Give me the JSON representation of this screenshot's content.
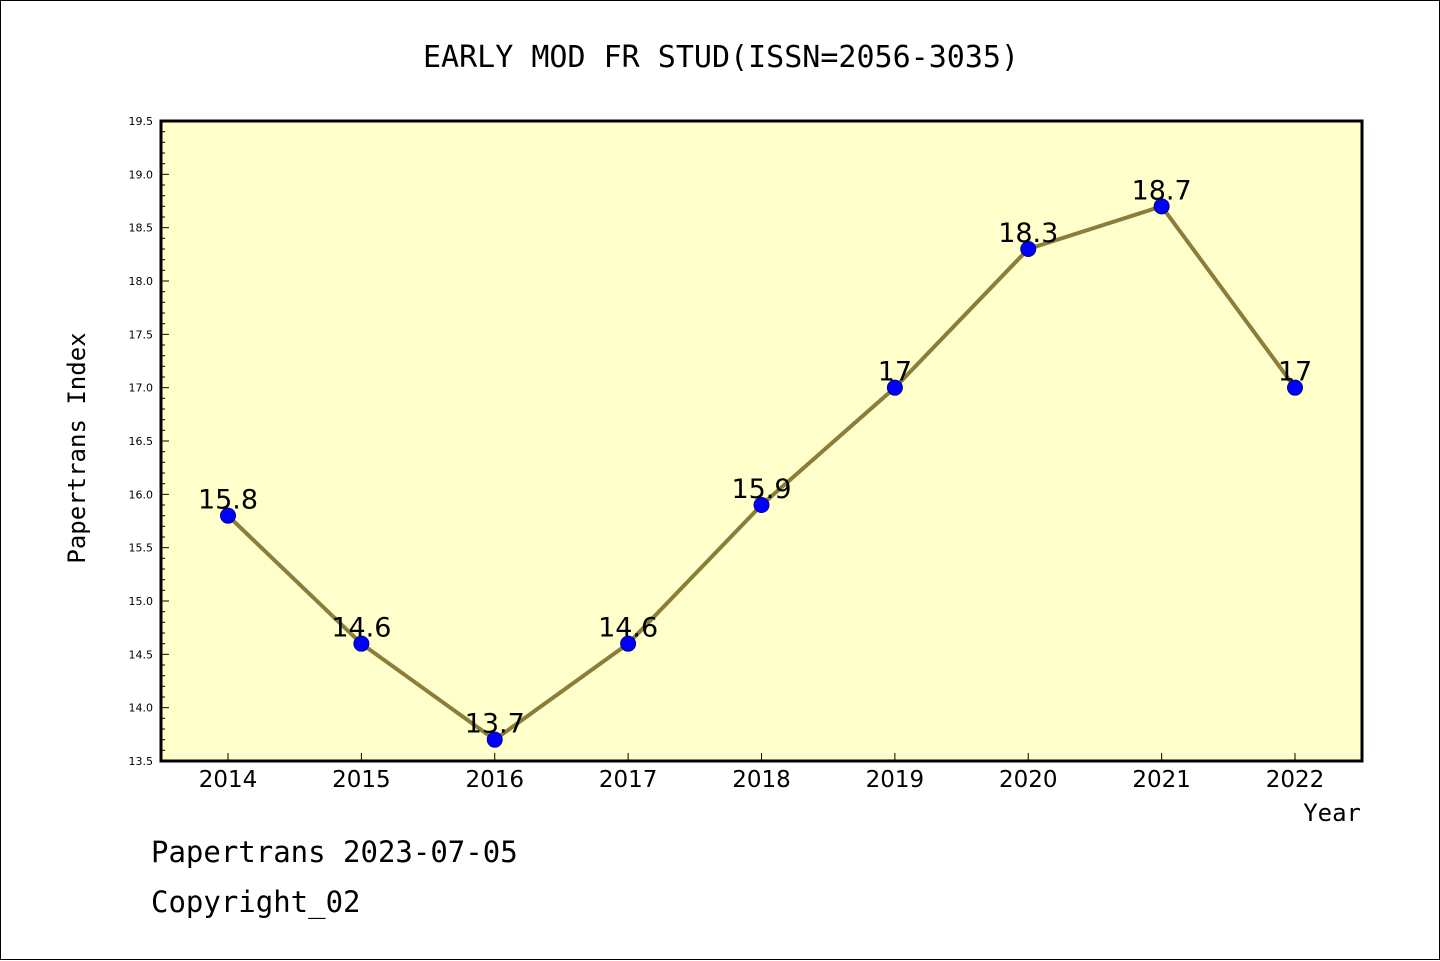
{
  "footer": {
    "line1": "Papertrans 2023-07-05",
    "line2": "Copyright_02"
  },
  "chart_data": {
    "type": "line",
    "title": "EARLY MOD FR STUD(ISSN=2056-3035)",
    "xlabel": "Year",
    "ylabel": "Papertrans Index",
    "categories": [
      "2014",
      "2015",
      "2016",
      "2017",
      "2018",
      "2019",
      "2020",
      "2021",
      "2022"
    ],
    "values": [
      15.8,
      14.6,
      13.7,
      14.6,
      15.9,
      17,
      18.3,
      18.7,
      17
    ],
    "data_labels": [
      "15.8",
      "14.6",
      "13.7",
      "14.6",
      "15.9",
      "17",
      "18.3",
      "18.7",
      "17"
    ],
    "ylim": [
      13.5,
      19.5
    ],
    "y_ticks": [
      "13.5",
      "14.0",
      "14.5",
      "15.0",
      "15.5",
      "16.0",
      "16.5",
      "17.0",
      "17.5",
      "18.0",
      "18.5",
      "19.0",
      "19.5"
    ],
    "grid": false,
    "legend": "none",
    "colors": {
      "plot_background": "#ffffcc",
      "line": "#8b7d3a",
      "marker": "#0000ff",
      "marker_edge": "#00008b",
      "axes": "#000000"
    }
  }
}
